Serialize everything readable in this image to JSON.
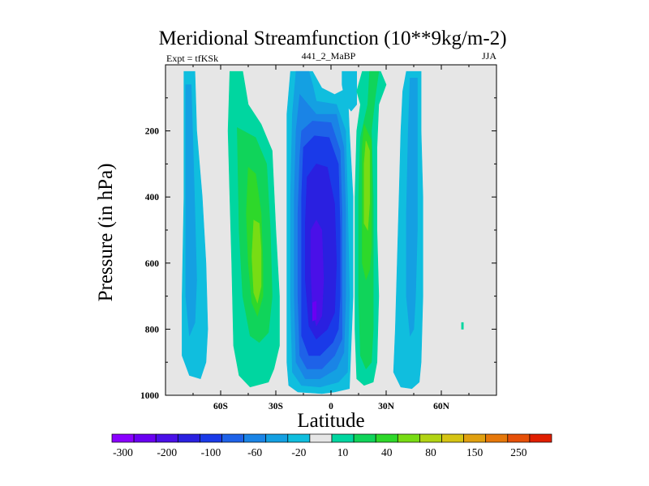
{
  "chart_data": {
    "type": "contour",
    "title": "Meridional Streamfunction (10**9kg/m-2)",
    "left_label": "Expt = tfKSk",
    "center_label": "441_2_MaBP",
    "right_label": "JJA",
    "xlabel": "Latitude",
    "ylabel": "Pressure (in hPa)",
    "xlim": [
      -90,
      90
    ],
    "ylim": [
      1000,
      0
    ],
    "xticks": [
      {
        "value": -60,
        "label": "60S"
      },
      {
        "value": -30,
        "label": "30S"
      },
      {
        "value": 0,
        "label": "0"
      },
      {
        "value": 30,
        "label": "30N"
      },
      {
        "value": 60,
        "label": "60N"
      }
    ],
    "yticks": [
      {
        "value": 200,
        "label": "200"
      },
      {
        "value": 400,
        "label": "400"
      },
      {
        "value": 600,
        "label": "600"
      },
      {
        "value": 800,
        "label": "800"
      },
      {
        "value": 1000,
        "label": "1000"
      }
    ],
    "background_color": "#e6e6e6",
    "colorbar": {
      "levels": [
        -300,
        -250,
        -200,
        -150,
        -100,
        -80,
        -60,
        -40,
        -20,
        -10,
        10,
        20,
        40,
        60,
        80,
        100,
        150,
        200,
        250,
        300
      ],
      "labels": [
        {
          "value": -300,
          "label": "-300"
        },
        {
          "value": -200,
          "label": "-200"
        },
        {
          "value": -100,
          "label": "-100"
        },
        {
          "value": -60,
          "label": "-60"
        },
        {
          "value": -20,
          "label": "-20"
        },
        {
          "value": 10,
          "label": "10"
        },
        {
          "value": 40,
          "label": "40"
        },
        {
          "value": 80,
          "label": "80"
        },
        {
          "value": 150,
          "label": "150"
        },
        {
          "value": 250,
          "label": "250"
        }
      ],
      "colors": [
        "#8a00ff",
        "#6a00f2",
        "#4a10e8",
        "#2a20e0",
        "#1a3ae8",
        "#1e62e8",
        "#1a84e6",
        "#14a0e2",
        "#10bede",
        "#e6e6e6",
        "#00d6a0",
        "#10d45a",
        "#2ed82a",
        "#78dc14",
        "#b2d414",
        "#d6c414",
        "#e0a010",
        "#e6780a",
        "#e65008",
        "#e01e00"
      ]
    },
    "regions": [
      {
        "level": -20,
        "color": "#10bede",
        "points": [
          [
            -80,
            20
          ],
          [
            -74,
            20
          ],
          [
            -73,
            200
          ],
          [
            -70,
            400
          ],
          [
            -68,
            600
          ],
          [
            -67,
            800
          ],
          [
            -68,
            900
          ],
          [
            -71,
            950
          ],
          [
            -77,
            940
          ],
          [
            -81,
            880
          ],
          [
            -81,
            700
          ],
          [
            -80,
            400
          ],
          [
            -80,
            200
          ]
        ]
      },
      {
        "level": -40,
        "color": "#14a0e2",
        "points": [
          [
            -79,
            60
          ],
          [
            -76,
            60
          ],
          [
            -75,
            250
          ],
          [
            -74,
            450
          ],
          [
            -73,
            650
          ],
          [
            -74,
            780
          ],
          [
            -77,
            820
          ],
          [
            -79,
            700
          ],
          [
            -79,
            400
          ]
        ]
      },
      {
        "level": 10,
        "color": "#00d6a0",
        "points": [
          [
            -55,
            20
          ],
          [
            -48,
            20
          ],
          [
            -45,
            120
          ],
          [
            -38,
            180
          ],
          [
            -32,
            260
          ],
          [
            -30,
            500
          ],
          [
            -28,
            700
          ],
          [
            -28,
            850
          ],
          [
            -31,
            920
          ],
          [
            -34,
            960
          ],
          [
            -44,
            975
          ],
          [
            -50,
            940
          ],
          [
            -53,
            850
          ],
          [
            -54,
            600
          ],
          [
            -55,
            400
          ],
          [
            -56,
            200
          ]
        ]
      },
      {
        "level": 20,
        "color": "#10d45a",
        "points": [
          [
            -51,
            190
          ],
          [
            -41,
            220
          ],
          [
            -35,
            300
          ],
          [
            -33,
            500
          ],
          [
            -32,
            700
          ],
          [
            -34,
            810
          ],
          [
            -39,
            840
          ],
          [
            -44,
            820
          ],
          [
            -48,
            700
          ],
          [
            -50,
            500
          ]
        ]
      },
      {
        "level": 40,
        "color": "#2ed82a",
        "points": [
          [
            -45,
            310
          ],
          [
            -41,
            330
          ],
          [
            -38,
            450
          ],
          [
            -37,
            600
          ],
          [
            -37,
            700
          ],
          [
            -40,
            760
          ],
          [
            -43,
            720
          ],
          [
            -45,
            600
          ],
          [
            -46,
            450
          ]
        ]
      },
      {
        "level": 60,
        "color": "#78dc14",
        "points": [
          [
            -42,
            470
          ],
          [
            -39,
            480
          ],
          [
            -38,
            560
          ],
          [
            -38,
            670
          ],
          [
            -40,
            720
          ],
          [
            -42,
            690
          ],
          [
            -43,
            580
          ]
        ]
      },
      {
        "level": -10,
        "color": "#e6e6e6",
        "points": []
      },
      {
        "level": -10,
        "color": "#10bede",
        "points": [
          [
            -22,
            20
          ],
          [
            -10,
            20
          ],
          [
            -5,
            70
          ],
          [
            2,
            90
          ],
          [
            9,
            70
          ],
          [
            10,
            200
          ],
          [
            12,
            400
          ],
          [
            12,
            700
          ],
          [
            10,
            980
          ],
          [
            2,
            990
          ],
          [
            -5,
            995
          ],
          [
            -18,
            990
          ],
          [
            -23,
            970
          ],
          [
            -24,
            900
          ],
          [
            -24,
            700
          ],
          [
            -24,
            400
          ],
          [
            -24,
            150
          ]
        ]
      },
      {
        "level": -20,
        "color": "#14a0e2",
        "points": [
          [
            -19,
            20
          ],
          [
            -12,
            20
          ],
          [
            -10,
            60
          ],
          [
            -8,
            110
          ],
          [
            3,
            120
          ],
          [
            8,
            200
          ],
          [
            9,
            400
          ],
          [
            10,
            700
          ],
          [
            9,
            930
          ],
          [
            4,
            960
          ],
          [
            -6,
            975
          ],
          [
            -16,
            970
          ],
          [
            -21,
            930
          ],
          [
            -22,
            700
          ],
          [
            -22,
            400
          ],
          [
            -21,
            150
          ]
        ]
      },
      {
        "level": -40,
        "color": "#1a84e6",
        "points": [
          [
            -17,
            90
          ],
          [
            -8,
            150
          ],
          [
            3,
            150
          ],
          [
            7,
            250
          ],
          [
            8,
            450
          ],
          [
            8,
            700
          ],
          [
            7,
            870
          ],
          [
            3,
            920
          ],
          [
            -6,
            950
          ],
          [
            -14,
            950
          ],
          [
            -19,
            900
          ],
          [
            -20,
            700
          ],
          [
            -20,
            400
          ],
          [
            -19,
            200
          ]
        ]
      },
      {
        "level": -60,
        "color": "#1e62e8",
        "points": [
          [
            -16,
            200
          ],
          [
            -10,
            170
          ],
          [
            0,
            175
          ],
          [
            5,
            260
          ],
          [
            6,
            450
          ],
          [
            6,
            700
          ],
          [
            6,
            830
          ],
          [
            2,
            880
          ],
          [
            -5,
            920
          ],
          [
            -13,
            920
          ],
          [
            -17,
            880
          ],
          [
            -18,
            700
          ],
          [
            -18,
            450
          ],
          [
            -17,
            280
          ]
        ]
      },
      {
        "level": -80,
        "color": "#1a3ae8",
        "points": [
          [
            -15,
            250
          ],
          [
            -9,
            215
          ],
          [
            -1,
            220
          ],
          [
            4,
            300
          ],
          [
            5,
            500
          ],
          [
            5,
            700
          ],
          [
            4,
            800
          ],
          [
            1,
            840
          ],
          [
            -6,
            880
          ],
          [
            -12,
            880
          ],
          [
            -16,
            820
          ],
          [
            -16,
            600
          ],
          [
            -16,
            400
          ]
        ]
      },
      {
        "level": -100,
        "color": "#2a20e0",
        "points": [
          [
            -13,
            340
          ],
          [
            -8,
            300
          ],
          [
            -2,
            310
          ],
          [
            2,
            420
          ],
          [
            3,
            600
          ],
          [
            2,
            750
          ],
          [
            -2,
            800
          ],
          [
            -8,
            830
          ],
          [
            -12,
            790
          ],
          [
            -14,
            650
          ],
          [
            -14,
            480
          ]
        ]
      },
      {
        "level": -150,
        "color": "#4a10e8",
        "points": [
          [
            -11,
            500
          ],
          [
            -8,
            470
          ],
          [
            -5,
            500
          ],
          [
            -4,
            650
          ],
          [
            -5,
            760
          ],
          [
            -8,
            790
          ],
          [
            -10,
            740
          ],
          [
            -11,
            620
          ]
        ]
      },
      {
        "level": -200,
        "color": "#6a00f2",
        "points": [
          [
            -10,
            720
          ],
          [
            -8,
            715
          ],
          [
            -8,
            770
          ],
          [
            -10,
            775
          ]
        ]
      },
      {
        "level": -10,
        "color": "#10bede",
        "points": [
          [
            6,
            20
          ],
          [
            14,
            20
          ],
          [
            14,
            120
          ],
          [
            11,
            140
          ],
          [
            8,
            120
          ],
          [
            6,
            60
          ]
        ]
      },
      {
        "level": 10,
        "color": "#00d6a0",
        "points": [
          [
            17,
            20
          ],
          [
            27,
            20
          ],
          [
            30,
            60
          ],
          [
            26,
            120
          ],
          [
            25,
            250
          ],
          [
            25,
            500
          ],
          [
            26,
            700
          ],
          [
            25,
            900
          ],
          [
            23,
            960
          ],
          [
            18,
            970
          ],
          [
            14,
            950
          ],
          [
            13,
            800
          ],
          [
            13,
            600
          ],
          [
            13,
            400
          ],
          [
            14,
            200
          ],
          [
            16,
            120
          ],
          [
            14,
            80
          ]
        ]
      },
      {
        "level": 20,
        "color": "#10d45a",
        "points": [
          [
            21,
            20
          ],
          [
            26,
            20
          ],
          [
            24,
            100
          ],
          [
            22,
            200
          ],
          [
            23,
            400
          ],
          [
            23,
            600
          ],
          [
            23,
            800
          ],
          [
            22,
            900
          ],
          [
            19,
            920
          ],
          [
            16,
            880
          ],
          [
            15,
            700
          ],
          [
            15,
            400
          ],
          [
            16,
            220
          ],
          [
            20,
            120
          ]
        ]
      },
      {
        "level": 40,
        "color": "#2ed82a",
        "points": [
          [
            18,
            180
          ],
          [
            22,
            230
          ],
          [
            22,
            400
          ],
          [
            22,
            550
          ],
          [
            21,
            620
          ],
          [
            19,
            650
          ],
          [
            17,
            600
          ],
          [
            17,
            400
          ],
          [
            17,
            250
          ]
        ]
      },
      {
        "level": 60,
        "color": "#78dc14",
        "points": [
          [
            19,
            230
          ],
          [
            21,
            260
          ],
          [
            21,
            420
          ],
          [
            20,
            500
          ],
          [
            18,
            480
          ],
          [
            18,
            300
          ]
        ]
      },
      {
        "level": -10,
        "color": "#10bede",
        "points": [
          [
            41,
            20
          ],
          [
            49,
            20
          ],
          [
            49,
            200
          ],
          [
            50,
            400
          ],
          [
            50,
            700
          ],
          [
            49,
            900
          ],
          [
            48,
            960
          ],
          [
            44,
            980
          ],
          [
            38,
            975
          ],
          [
            34,
            930
          ],
          [
            35,
            800
          ],
          [
            36,
            600
          ],
          [
            37,
            400
          ],
          [
            38,
            200
          ],
          [
            39,
            80
          ]
        ]
      },
      {
        "level": -20,
        "color": "#14a0e2",
        "points": [
          [
            43,
            40
          ],
          [
            47,
            40
          ],
          [
            47,
            200
          ],
          [
            47,
            500
          ],
          [
            46,
            700
          ],
          [
            45,
            800
          ],
          [
            43,
            820
          ],
          [
            41,
            700
          ],
          [
            41,
            450
          ],
          [
            42,
            200
          ]
        ]
      },
      {
        "level": 10,
        "color": "#00d6a0",
        "points": [
          [
            71,
            780
          ],
          [
            72,
            780
          ],
          [
            72,
            800
          ],
          [
            71,
            800
          ]
        ]
      }
    ]
  }
}
